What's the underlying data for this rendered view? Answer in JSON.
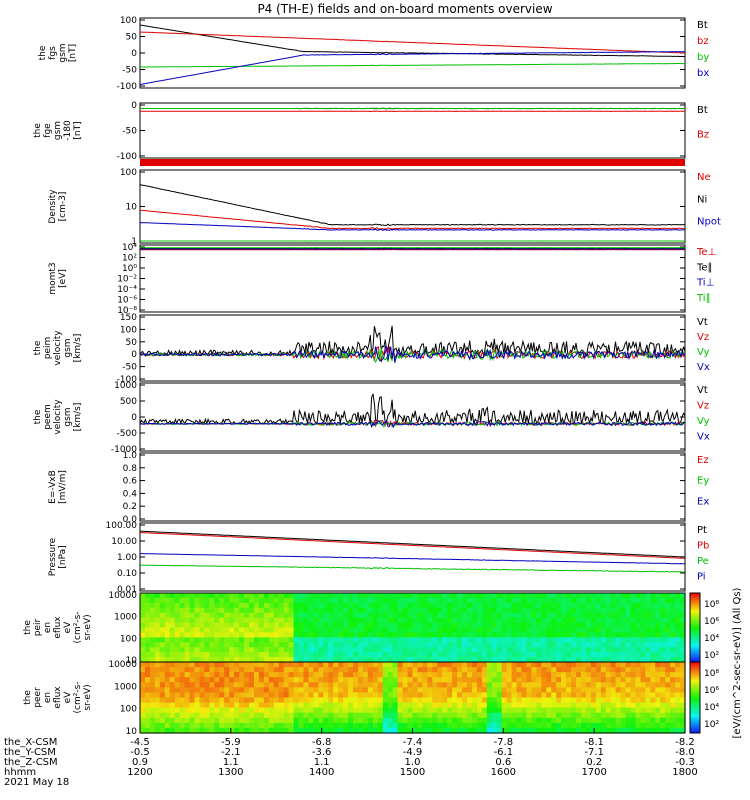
{
  "title": "P4 (TH-E) fields and on-board moments overview",
  "colors": {
    "black": "#000000",
    "red": "#e00000",
    "green": "#00c000",
    "blue": "#0000c0"
  },
  "chart_data": [
    {
      "type": "line",
      "panel": "fgs",
      "ylabel_lines": [
        "the",
        "fgs",
        "gsm",
        "[nT]"
      ],
      "ylim": [
        -100,
        100
      ],
      "yticks": [
        "100",
        "50",
        "0",
        "-50",
        "-100"
      ],
      "legend": [
        {
          "label": "Bt",
          "color": "black"
        },
        {
          "label": "bz",
          "color": "red"
        },
        {
          "label": "by",
          "color": "green"
        },
        {
          "label": "bx",
          "color": "blue"
        }
      ]
    },
    {
      "type": "line",
      "panel": "fge",
      "ylabel_lines": [
        "the",
        "fge",
        "gsm",
        "-180",
        "[nT]"
      ],
      "ylim": [
        -125,
        10
      ],
      "yticks": [
        "0",
        "-50",
        "-100"
      ],
      "legend": [
        {
          "label": "Bt",
          "color": "black"
        },
        {
          "label": "Bz",
          "color": "red"
        }
      ]
    },
    {
      "type": "line",
      "panel": "density",
      "ylabel_lines": [
        "Density",
        "[cm-3]"
      ],
      "yscale": "log",
      "ylim": [
        0.5,
        150
      ],
      "yticks": [
        "100",
        "10",
        "1"
      ],
      "legend": [
        {
          "label": "Ne",
          "color": "red"
        },
        {
          "label": "Ni",
          "color": "black"
        },
        {
          "label": "Npot",
          "color": "blue"
        }
      ]
    },
    {
      "type": "line",
      "panel": "temperature",
      "ylabel_lines": [
        "momt3",
        "[eV]"
      ],
      "yscale": "log",
      "yticks": [
        "10⁴",
        "10²",
        "10⁰",
        "10⁻²",
        "10⁻⁴",
        "10⁻⁶",
        "10⁻⁸"
      ],
      "legend": [
        {
          "label": "Te⊥",
          "color": "red"
        },
        {
          "label": "Te∥",
          "color": "black"
        },
        {
          "label": "Ti⊥",
          "color": "blue"
        },
        {
          "label": "Ti∥",
          "color": "green"
        }
      ]
    },
    {
      "type": "line",
      "panel": "peim-velocity",
      "ylabel_lines": [
        "the",
        "peim",
        "velocity",
        "gsm",
        "[km/s]"
      ],
      "ylim": [
        -100,
        150
      ],
      "yticks": [
        "150",
        "100",
        "50",
        "0",
        "-50",
        "-100"
      ],
      "legend": [
        {
          "label": "Vt",
          "color": "black"
        },
        {
          "label": "Vz",
          "color": "red"
        },
        {
          "label": "Vy",
          "color": "green"
        },
        {
          "label": "Vx",
          "color": "blue"
        }
      ]
    },
    {
      "type": "line",
      "panel": "peem-velocity",
      "ylabel_lines": [
        "the",
        "peem",
        "velocity",
        "gsm",
        "[km/s]"
      ],
      "ylim": [
        -1000,
        1000
      ],
      "yticks": [
        "1000",
        "500",
        "0",
        "-500",
        "-1000"
      ],
      "legend": [
        {
          "label": "Vt",
          "color": "black"
        },
        {
          "label": "Vz",
          "color": "red"
        },
        {
          "label": "Vy",
          "color": "green"
        },
        {
          "label": "Vx",
          "color": "blue"
        }
      ]
    },
    {
      "type": "line",
      "panel": "efield",
      "ylabel_lines": [
        "E=-VxB",
        "[mV/m]"
      ],
      "ylim": [
        0,
        1
      ],
      "yticks": [
        "1.0",
        "0.8",
        "0.6",
        "0.4",
        "0.2",
        "0.0"
      ],
      "legend": [
        {
          "label": "Ez",
          "color": "red"
        },
        {
          "label": "Ey",
          "color": "green"
        },
        {
          "label": "Ex",
          "color": "blue"
        }
      ]
    },
    {
      "type": "line",
      "panel": "pressure",
      "ylabel_lines": [
        "Pressure",
        "[nPa]"
      ],
      "yscale": "log",
      "ylim": [
        0.01,
        100
      ],
      "yticks": [
        "100.00",
        "10.00",
        "1.00",
        "0.10",
        "0.01"
      ],
      "legend": [
        {
          "label": "Pt",
          "color": "black"
        },
        {
          "label": "Pb",
          "color": "red"
        },
        {
          "label": "Pe",
          "color": "green"
        },
        {
          "label": "Pi",
          "color": "blue"
        }
      ]
    },
    {
      "type": "heatmap",
      "panel": "peir-spectrogram",
      "ylabel_lines": [
        "the",
        "peir",
        "en",
        "eflux",
        "eV",
        "(cm²-s-",
        "sr-eV)"
      ],
      "yscale": "log",
      "yticks": [
        "10000",
        "1000",
        "100",
        "10"
      ],
      "colorbar_ticks": [
        "10⁸",
        "10⁶",
        "10⁴",
        "10²"
      ]
    },
    {
      "type": "heatmap",
      "panel": "peer-spectrogram",
      "ylabel_lines": [
        "the",
        "peer",
        "en",
        "eflux",
        "eV",
        "(cm²-s-",
        "sr-eV)"
      ],
      "yscale": "log",
      "yticks": [
        "10000",
        "1000",
        "100",
        "10"
      ],
      "colorbar_ticks": [
        "10⁸",
        "10⁶",
        "10⁴",
        "10²"
      ]
    }
  ],
  "colorbar_label": "[eV/(cm^2-sec-sr-eV)] (All Qs)",
  "xaxis": {
    "row_labels": [
      "the_X-CSM",
      "the_Y-CSM",
      "the_Z-CSM",
      "hhmm",
      "2021 May 18"
    ],
    "rows": [
      [
        "-4.5",
        "-5.9",
        "-6.8",
        "-7.4",
        "-7.8",
        "-8.1",
        "-8.2"
      ],
      [
        "-0.5",
        "-2.1",
        "-3.6",
        "-4.9",
        "-6.1",
        "-7.1",
        "-8.0"
      ],
      [
        "0.9",
        "1.1",
        "1.1",
        "1.0",
        "0.6",
        "0.2",
        "-0.3"
      ],
      [
        "1200",
        "1300",
        "1400",
        "1500",
        "1600",
        "1700",
        "1800"
      ]
    ]
  }
}
